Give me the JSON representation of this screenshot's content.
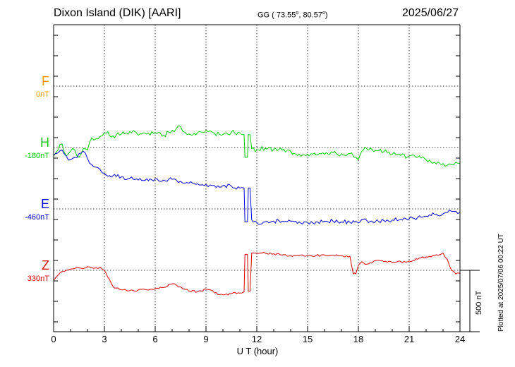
{
  "header": {
    "station": "Dixon Island (DIK)  [AARI]",
    "coords_prefix": "GG ( 73.55",
    "coords_mid": ",  80.57",
    "coords_suffix": ")",
    "degree_mark": "o",
    "date": "2025/06/27"
  },
  "footer_note": "Plotted at 2025/07/06 00:22 UT",
  "scale_bar": {
    "label": "500 nT",
    "value_nT": 500
  },
  "colors": {
    "F": "#f0a000",
    "H": "#00cc00",
    "E": "#0000dd",
    "Z": "#dd0000",
    "grid": "#000000"
  },
  "chart_data": {
    "type": "line",
    "xlabel": "U T (hour)",
    "xlim": [
      0,
      24
    ],
    "xticks": [
      "0",
      "3",
      "6",
      "9",
      "12",
      "15",
      "18",
      "21",
      "24"
    ],
    "grid": true,
    "components": [
      {
        "name": "F",
        "baseline_label": "0nT"
      },
      {
        "name": "H",
        "baseline_label": "-180nT"
      },
      {
        "name": "E",
        "baseline_label": "-460nT"
      },
      {
        "name": "Z",
        "baseline_label": "330nT"
      }
    ],
    "series": [
      {
        "name": "H",
        "color": "#00cc00",
        "x": [
          0,
          0.25,
          0.5,
          0.75,
          1,
          1.25,
          1.5,
          1.75,
          2,
          2.25,
          2.5,
          2.75,
          3,
          3.5,
          4,
          4.5,
          5,
          5.5,
          6,
          6.5,
          7,
          7.25,
          7.5,
          7.75,
          8,
          8.5,
          9,
          9.25,
          9.5,
          10,
          10.5,
          11,
          11.25,
          11.3,
          11.45,
          11.5,
          11.6,
          11.7,
          12,
          12.5,
          13,
          13.5,
          14,
          14.5,
          15,
          15.5,
          16,
          16.5,
          17,
          17.5,
          17.7,
          17.85,
          18,
          18.2,
          18.5,
          18.8,
          19,
          19.5,
          20,
          20.5,
          21,
          21.5,
          22,
          22.5,
          23,
          23.25,
          23.5,
          23.75,
          24
        ],
        "values": [
          -250,
          -200,
          -150,
          -250,
          -210,
          -200,
          -260,
          -190,
          -200,
          -100,
          -110,
          -90,
          -60,
          -85,
          -70,
          -50,
          -80,
          -70,
          -60,
          -80,
          -40,
          -25,
          -10,
          -55,
          -70,
          -60,
          -40,
          -45,
          -65,
          -75,
          -55,
          -60,
          -75,
          -260,
          -260,
          -75,
          -75,
          -190,
          -200,
          -185,
          -195,
          -200,
          -210,
          -235,
          -235,
          -240,
          -235,
          -225,
          -230,
          -230,
          -250,
          -260,
          -280,
          -210,
          -190,
          -195,
          -205,
          -215,
          -235,
          -245,
          -250,
          -260,
          -280,
          -300,
          -310,
          -325,
          -320,
          -300,
          -310
        ]
      },
      {
        "name": "E",
        "color": "#0000dd",
        "x": [
          0,
          0.25,
          0.5,
          0.75,
          1,
          1.25,
          1.5,
          1.75,
          2,
          2.25,
          2.5,
          2.75,
          3,
          3.5,
          4,
          4.5,
          5,
          5.5,
          6,
          6.5,
          7,
          7.25,
          7.5,
          7.75,
          8,
          8.5,
          9,
          9.25,
          9.5,
          10,
          10.5,
          11,
          11.25,
          11.3,
          11.45,
          11.5,
          11.6,
          11.7,
          12,
          12.5,
          13,
          13.5,
          14,
          14.5,
          15,
          15.5,
          16,
          16.5,
          17,
          17.5,
          17.7,
          17.85,
          18,
          18.2,
          18.5,
          18.8,
          19,
          19.5,
          20,
          20.5,
          21,
          21.5,
          22,
          22.5,
          23,
          23.25,
          23.5,
          23.75,
          24
        ],
        "values": [
          -20,
          -5,
          20,
          -30,
          -60,
          -40,
          -10,
          10,
          -50,
          -100,
          -120,
          -140,
          -170,
          -190,
          -200,
          -210,
          -225,
          -215,
          -215,
          -225,
          -220,
          -225,
          -235,
          -250,
          -250,
          -255,
          -260,
          -265,
          -270,
          -270,
          -275,
          -290,
          -290,
          -565,
          -565,
          -290,
          -290,
          -550,
          -570,
          -565,
          -560,
          -560,
          -560,
          -565,
          -570,
          -565,
          -560,
          -560,
          -565,
          -570,
          -555,
          -560,
          -575,
          -545,
          -555,
          -560,
          -565,
          -555,
          -550,
          -545,
          -540,
          -530,
          -520,
          -505,
          -500,
          -490,
          -480,
          -480,
          -485
        ]
      },
      {
        "name": "Z",
        "color": "#dd0000",
        "x": [
          0,
          0.25,
          0.5,
          0.75,
          1,
          1.25,
          1.5,
          1.75,
          2,
          2.25,
          2.5,
          2.75,
          3,
          3.5,
          4,
          4.5,
          5,
          5.5,
          6,
          6.5,
          7,
          7.25,
          7.5,
          7.75,
          8,
          8.5,
          9,
          9.25,
          9.5,
          10,
          10.5,
          11,
          11.25,
          11.3,
          11.45,
          11.5,
          11.6,
          11.7,
          12,
          12.5,
          13,
          13.5,
          14,
          14.5,
          15,
          15.5,
          16,
          16.5,
          17,
          17.5,
          17.7,
          17.85,
          18,
          18.2,
          18.5,
          18.8,
          19,
          19.5,
          20,
          20.5,
          21,
          21.5,
          22,
          22.5,
          23,
          23.25,
          23.5,
          23.75,
          24
        ],
        "values": [
          250,
          290,
          320,
          330,
          340,
          345,
          350,
          345,
          360,
          350,
          350,
          355,
          330,
          200,
          170,
          165,
          170,
          170,
          180,
          190,
          220,
          210,
          195,
          175,
          160,
          155,
          175,
          170,
          145,
          130,
          140,
          145,
          155,
          460,
          460,
          160,
          160,
          470,
          470,
          470,
          465,
          455,
          450,
          450,
          450,
          450,
          455,
          455,
          450,
          445,
          300,
          300,
          370,
          400,
          380,
          390,
          410,
          400,
          395,
          400,
          405,
          420,
          440,
          450,
          470,
          420,
          330,
          300,
          305
        ]
      }
    ]
  }
}
